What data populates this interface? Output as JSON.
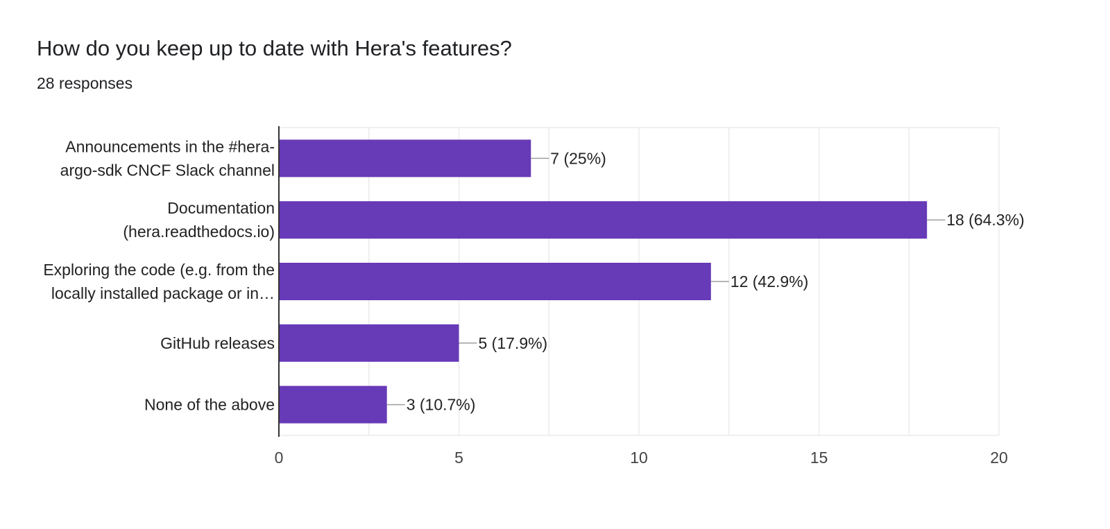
{
  "header": {
    "title": "How do you keep up to date with Hera's features?",
    "responses": "28 responses"
  },
  "colors": {
    "bar": "#673ab7",
    "grid": "#ebebeb",
    "axis": "#333333",
    "text": "#222222",
    "tick_text": "#444444",
    "leader": "#9e9e9e"
  },
  "chart_data": {
    "type": "bar",
    "orientation": "horizontal",
    "title": "How do you keep up to date with Hera's features?",
    "subtitle": "28 responses",
    "categories": [
      [
        "Announcements in the #hera-",
        "argo-sdk CNCF Slack channel"
      ],
      [
        "Documentation",
        "(hera.readthedocs.io)"
      ],
      [
        "Exploring the code (e.g. from the",
        "locally installed package or in…"
      ],
      [
        "GitHub releases"
      ],
      [
        "None of the above"
      ]
    ],
    "values": [
      7,
      18,
      12,
      5,
      3
    ],
    "data_labels": [
      "7 (25%)",
      "18 (64.3%)",
      "12 (42.9%)",
      "5 (17.9%)",
      "3 (10.7%)"
    ],
    "xlim": [
      0,
      20
    ],
    "xticks": [
      0,
      5,
      10,
      15,
      20
    ],
    "minor_gridlines": true,
    "legend": "none",
    "xlabel": "",
    "ylabel": ""
  }
}
